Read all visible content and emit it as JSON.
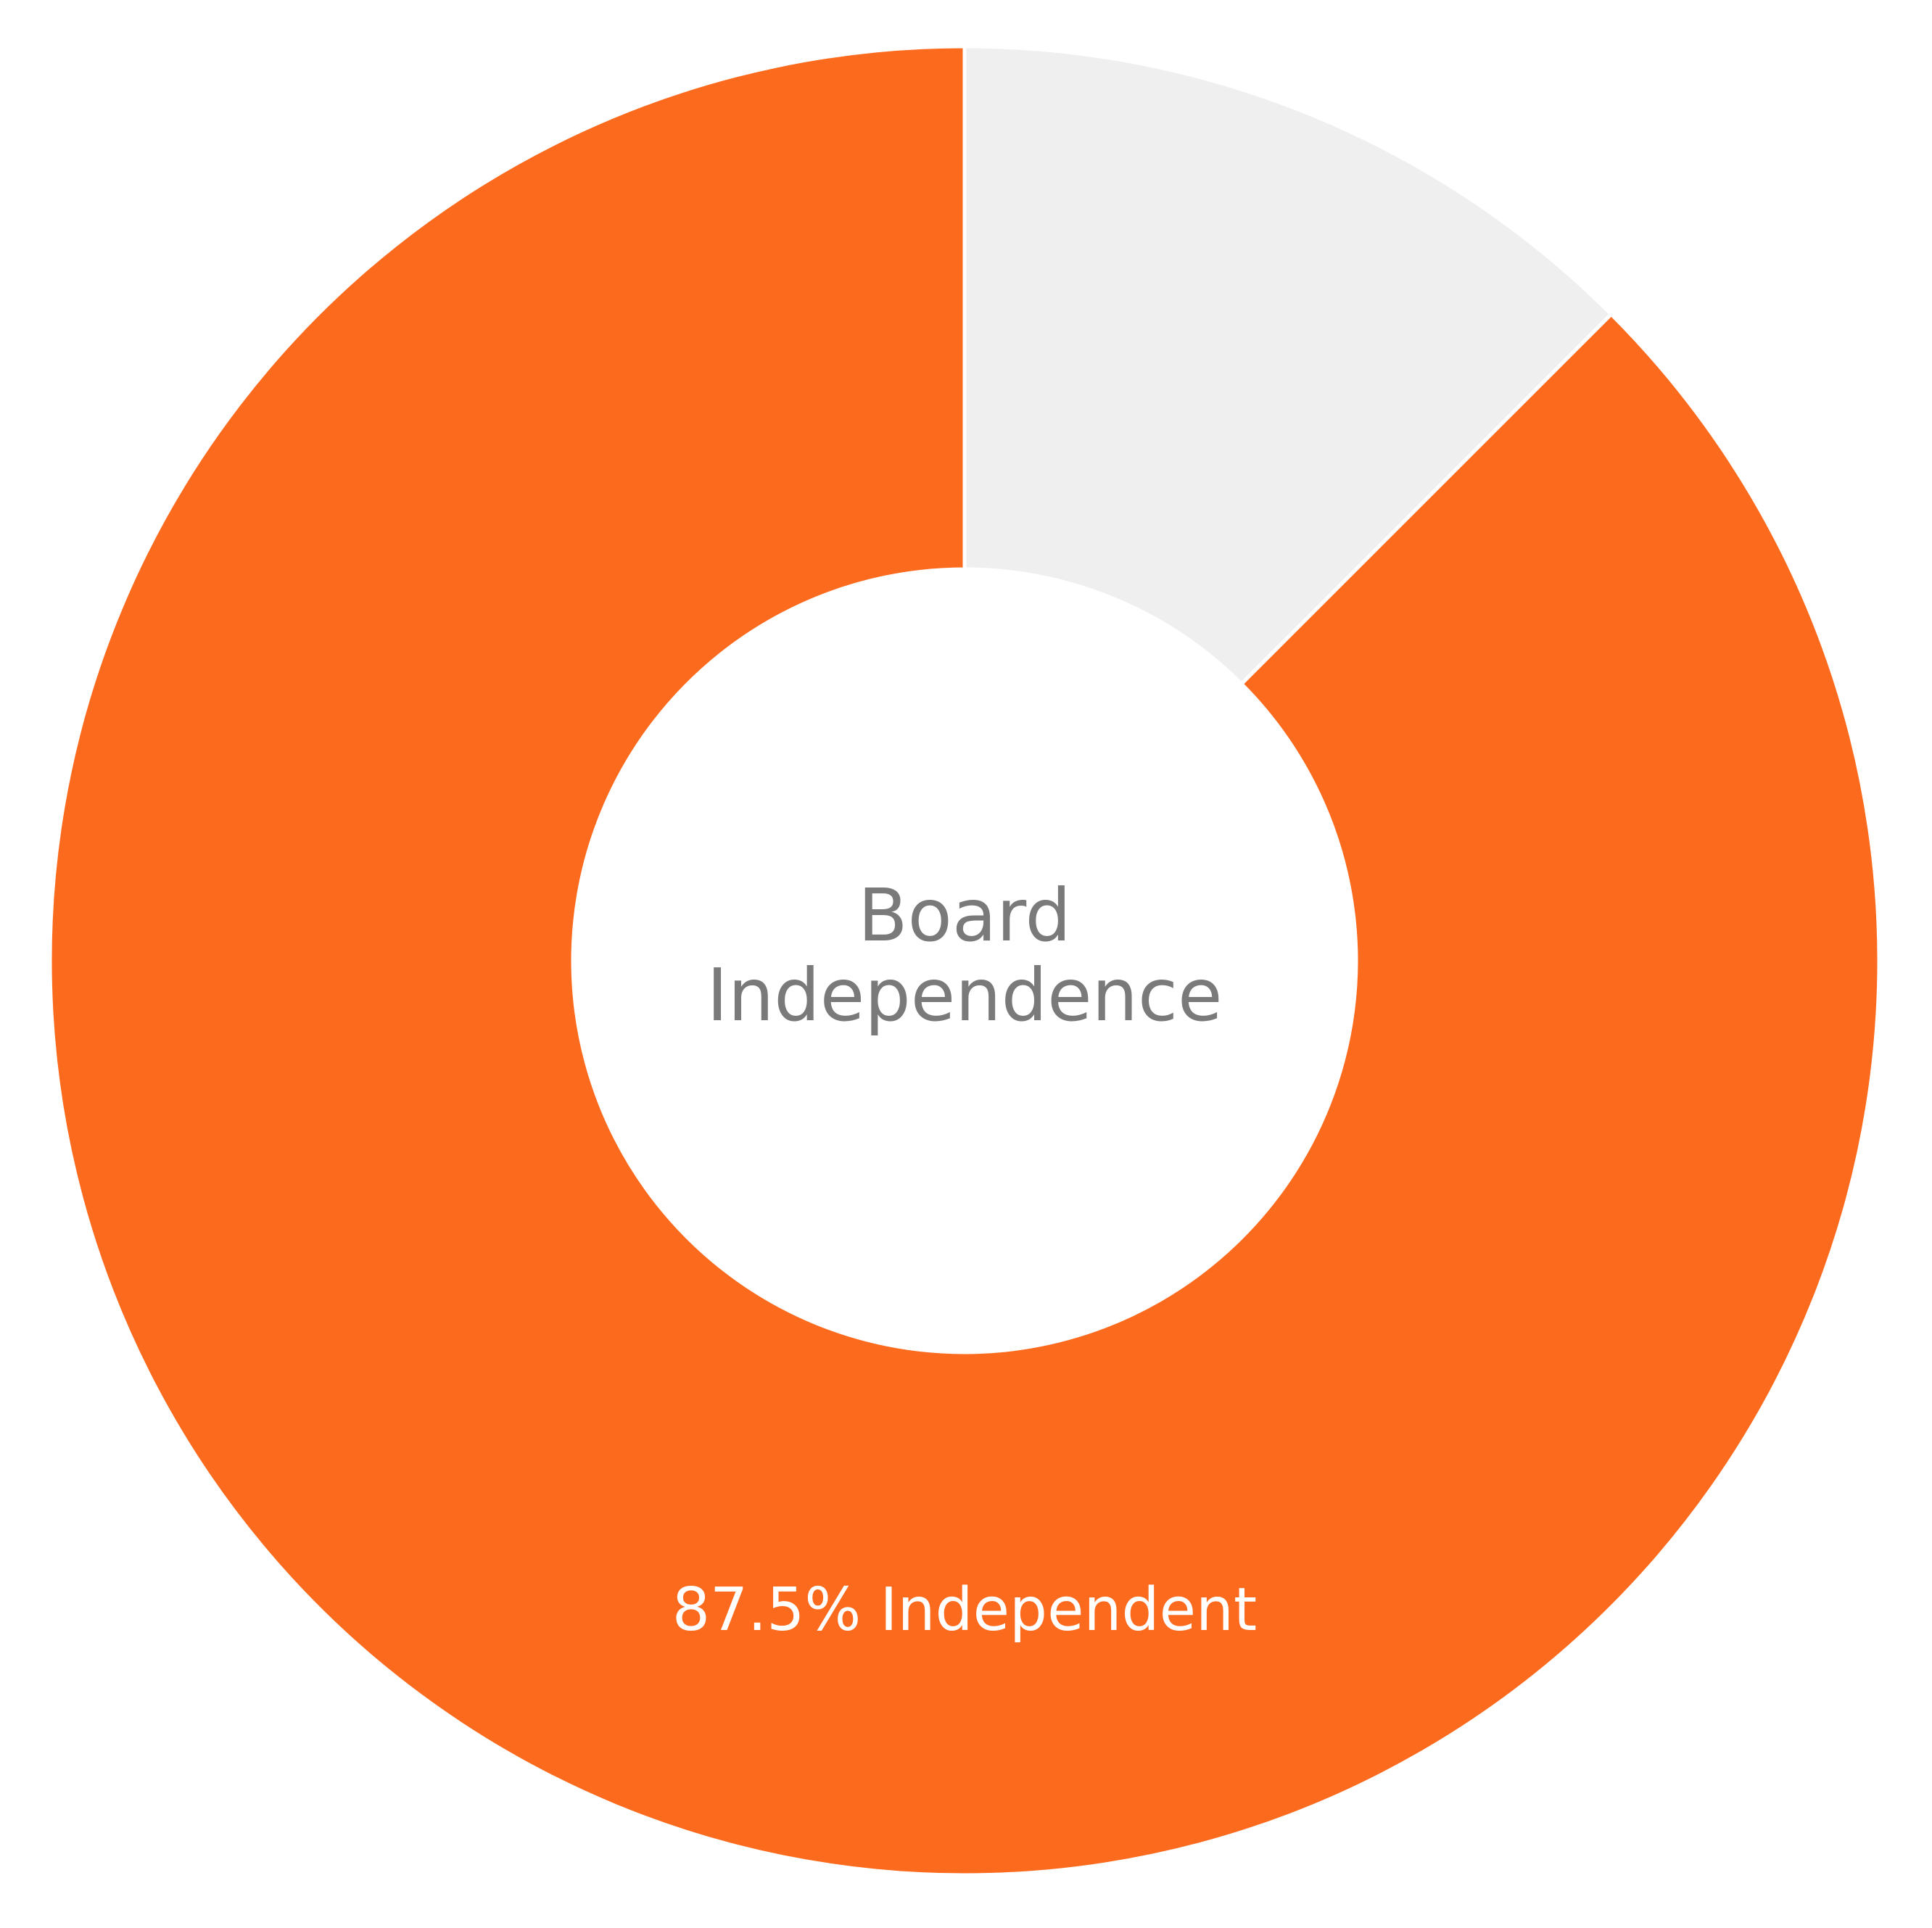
{
  "chart_data": {
    "type": "donut",
    "center_label": "Board Independence",
    "values": [
      87.5,
      12.5
    ],
    "value_labels": [
      "87.5% Independent",
      null
    ],
    "colors": [
      "#fc6a1e",
      "#efefef"
    ]
  }
}
